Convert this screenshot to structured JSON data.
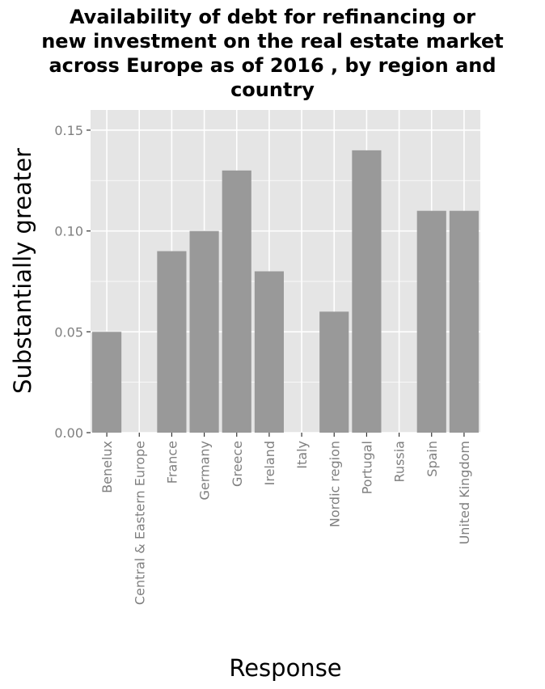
{
  "chart_data": {
    "type": "bar",
    "title_lines": [
      "Availability of debt for refinancing or",
      "new investment on the real estate market",
      "across Europe as of 2016 , by region and",
      "country"
    ],
    "xlabel": "Response",
    "ylabel": "Substantially greater",
    "categories": [
      "Benelux",
      "Central & Eastern Europe",
      "France",
      "Germany",
      "Greece",
      "Ireland",
      "Italy",
      "Nordic region",
      "Portugal",
      "Russia",
      "Spain",
      "United Kingdom"
    ],
    "values": [
      0.05,
      0,
      0.09,
      0.1,
      0.13,
      0.08,
      0,
      0.06,
      0.14,
      0,
      0.11,
      0.11
    ],
    "ylim": [
      0,
      0.16
    ],
    "yticks": [
      "0.00",
      "0.05",
      "0.10",
      "0.15"
    ],
    "grid": true,
    "colors": {
      "panel": "#e5e5e5",
      "grid": "#ffffff",
      "bar": "#999999",
      "tick_text": "#7f7f7f"
    }
  }
}
